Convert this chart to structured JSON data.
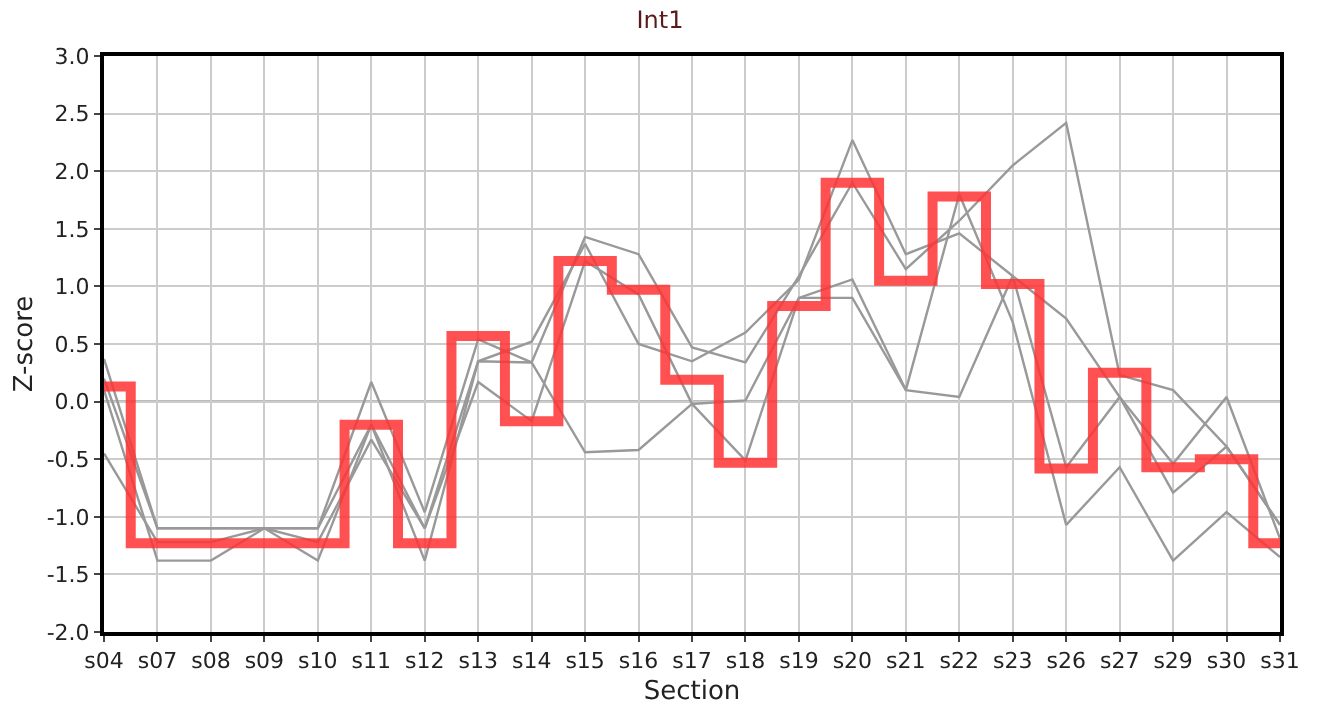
{
  "chart_data": {
    "type": "line",
    "title": "Int1",
    "xlabel": "Section",
    "ylabel": "Z-score",
    "categories": [
      "s04",
      "s07",
      "s08",
      "s09",
      "s10",
      "s11",
      "s12",
      "s13",
      "s14",
      "s15",
      "s16",
      "s17",
      "s18",
      "s19",
      "s20",
      "s21",
      "s22",
      "s23",
      "s26",
      "s27",
      "s29",
      "s30",
      "s31"
    ],
    "series": [
      {
        "color": "#999999",
        "values": [
          0.37,
          -1.1,
          -1.1,
          -1.1,
          -1.1,
          0.17,
          -0.96,
          0.54,
          0.34,
          1.43,
          1.28,
          0.47,
          0.34,
          1.09,
          1.9,
          1.15,
          1.57,
          2.05,
          2.42,
          0.23,
          0.1,
          -0.39,
          -1.07
        ]
      },
      {
        "color": "#999999",
        "values": [
          0.1,
          -1.38,
          -1.38,
          -1.1,
          -1.38,
          -0.2,
          -1.38,
          0.35,
          0.52,
          1.37,
          0.5,
          0.35,
          0.6,
          1.06,
          2.27,
          1.28,
          1.46,
          1.09,
          0.72,
          0.04,
          -0.54,
          0.04,
          -1.19
        ]
      },
      {
        "color": "#999999",
        "values": [
          -0.45,
          -1.22,
          -1.22,
          -1.1,
          -1.22,
          -0.33,
          -1.1,
          0.17,
          -0.17,
          1.22,
          0.93,
          -0.02,
          0.01,
          0.9,
          1.06,
          0.1,
          1.8,
          0.69,
          -1.07,
          -0.57,
          -1.38,
          -0.96,
          -1.35
        ]
      },
      {
        "color": "#999999",
        "values": [
          0.2,
          -1.1,
          -1.1,
          -1.1,
          -1.1,
          -0.2,
          -1.1,
          0.35,
          0.34,
          -0.44,
          -0.42,
          -0.02,
          -0.51,
          0.9,
          0.9,
          0.1,
          0.04,
          1.09,
          -0.57,
          0.04,
          -0.79,
          -0.39,
          -1.07
        ]
      },
      {
        "type": "step",
        "color": "#ff3333",
        "values": [
          0.13,
          -1.23,
          -1.23,
          -1.23,
          -1.23,
          -0.2,
          -1.23,
          0.57,
          -0.17,
          1.22,
          0.97,
          0.19,
          -0.53,
          0.83,
          1.9,
          1.05,
          1.78,
          1.02,
          -0.58,
          0.25,
          -0.57,
          -0.5,
          -1.23
        ]
      }
    ],
    "ylim": [
      -2.0,
      3.0
    ],
    "yticks": [
      {
        "value": -2,
        "label": "-2.0"
      },
      {
        "value": -1.5,
        "label": "-1.5"
      },
      {
        "value": -1,
        "label": "-1.0"
      },
      {
        "value": -0.5,
        "label": "-0.5"
      },
      {
        "value": 0,
        "label": "0.0"
      },
      {
        "value": 0.5,
        "label": "0.5"
      },
      {
        "value": 1,
        "label": "1.0"
      },
      {
        "value": 1.5,
        "label": "1.5"
      },
      {
        "value": 2,
        "label": "2.0"
      },
      {
        "value": 2.5,
        "label": "2.5"
      },
      {
        "value": 3,
        "label": "3.0"
      }
    ],
    "ref_lines": [
      {
        "axis": "y",
        "value": 0,
        "color": "#777777"
      }
    ],
    "grid": true
  }
}
